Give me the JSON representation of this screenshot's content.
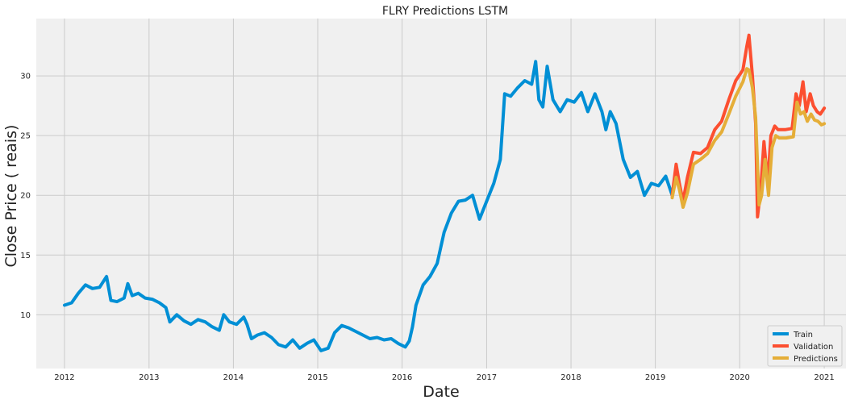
{
  "chart_data": {
    "type": "line",
    "title": "FLRY Predictions LSTM",
    "xlabel": "Date",
    "ylabel": "Close Price ( reais)",
    "x_ticks": [
      "2012",
      "2013",
      "2014",
      "2015",
      "2016",
      "2017",
      "2018",
      "2019",
      "2020",
      "2021"
    ],
    "y_ticks": [
      10,
      15,
      20,
      25,
      30
    ],
    "xlim": [
      "2011-09-01",
      "2021-04-05"
    ],
    "ylim": [
      5.5,
      34.8
    ],
    "grid": true,
    "legend_position": "lower-right",
    "colors": {
      "background": "#f0f0f0",
      "grid": "#cbcbcb",
      "train": "#008fd5",
      "validation": "#fc4f30",
      "predictions": "#e5ae38"
    },
    "series": [
      {
        "name": "Train",
        "x": [
          "2012-01-01",
          "2012-02-01",
          "2012-03-01",
          "2012-04-01",
          "2012-05-01",
          "2012-06-01",
          "2012-07-01",
          "2012-07-20",
          "2012-08-15",
          "2012-09-15",
          "2012-10-01",
          "2012-10-20",
          "2012-11-15",
          "2012-12-15",
          "2013-01-15",
          "2013-02-15",
          "2013-03-15",
          "2013-04-01",
          "2013-05-01",
          "2013-06-01",
          "2013-07-01",
          "2013-08-01",
          "2013-09-01",
          "2013-10-01",
          "2013-11-01",
          "2013-11-20",
          "2013-12-15",
          "2014-01-15",
          "2014-02-15",
          "2014-03-01",
          "2014-03-20",
          "2014-04-15",
          "2014-05-15",
          "2014-06-15",
          "2014-07-15",
          "2014-08-15",
          "2014-09-15",
          "2014-10-15",
          "2014-11-15",
          "2014-12-15",
          "2015-01-15",
          "2015-02-15",
          "2015-03-15",
          "2015-04-15",
          "2015-05-15",
          "2015-06-15",
          "2015-07-15",
          "2015-08-15",
          "2015-09-15",
          "2015-10-15",
          "2015-11-15",
          "2015-12-15",
          "2016-01-15",
          "2016-02-01",
          "2016-02-15",
          "2016-03-01",
          "2016-04-01",
          "2016-05-01",
          "2016-06-01",
          "2016-07-01",
          "2016-08-01",
          "2016-09-01",
          "2016-10-01",
          "2016-11-01",
          "2016-12-01",
          "2017-01-01",
          "2017-02-01",
          "2017-03-01",
          "2017-03-20",
          "2017-04-15",
          "2017-05-15",
          "2017-06-15",
          "2017-07-15",
          "2017-08-01",
          "2017-08-15",
          "2017-09-01",
          "2017-09-20",
          "2017-10-15",
          "2017-11-15",
          "2017-12-15",
          "2018-01-15",
          "2018-02-15",
          "2018-03-15",
          "2018-04-15",
          "2018-05-15",
          "2018-06-01",
          "2018-06-20",
          "2018-07-15",
          "2018-08-15",
          "2018-09-15",
          "2018-10-15",
          "2018-11-15",
          "2018-12-15",
          "2019-01-15",
          "2019-02-15",
          "2019-03-15"
        ],
        "values": [
          10.8,
          11.0,
          11.8,
          12.5,
          12.2,
          12.3,
          13.2,
          11.2,
          11.1,
          11.4,
          12.6,
          11.6,
          11.8,
          11.4,
          11.3,
          11.0,
          10.6,
          9.4,
          10.0,
          9.5,
          9.2,
          9.6,
          9.4,
          9.0,
          8.7,
          10.0,
          9.4,
          9.2,
          9.8,
          9.2,
          8.0,
          8.3,
          8.5,
          8.1,
          7.5,
          7.3,
          7.9,
          7.2,
          7.6,
          7.9,
          7.0,
          7.2,
          8.5,
          9.1,
          8.9,
          8.6,
          8.3,
          8.0,
          8.1,
          7.9,
          8.0,
          7.6,
          7.3,
          7.8,
          9.0,
          10.8,
          12.5,
          13.2,
          14.3,
          16.9,
          18.5,
          19.5,
          19.6,
          20.0,
          18.0,
          19.5,
          21.0,
          23.0,
          28.5,
          28.3,
          29.0,
          29.6,
          29.3,
          31.2,
          28.0,
          27.4,
          30.8,
          28.0,
          27.0,
          28.0,
          27.8,
          28.6,
          27.0,
          28.5,
          27.0,
          25.5,
          27.0,
          26.0,
          23.0,
          21.5,
          22.0,
          20.0,
          21.0,
          20.8,
          21.6,
          20.0
        ]
      },
      {
        "name": "Validation",
        "x": [
          "2019-03-15",
          "2019-04-01",
          "2019-04-15",
          "2019-05-01",
          "2019-05-20",
          "2019-06-15",
          "2019-07-15",
          "2019-08-15",
          "2019-09-15",
          "2019-10-15",
          "2019-11-15",
          "2019-12-15",
          "2020-01-15",
          "2020-02-01",
          "2020-02-10",
          "2020-02-25",
          "2020-03-10",
          "2020-03-18",
          "2020-04-01",
          "2020-04-15",
          "2020-05-01",
          "2020-05-15",
          "2020-06-01",
          "2020-06-15",
          "2020-07-15",
          "2020-08-15",
          "2020-09-01",
          "2020-09-15",
          "2020-10-01",
          "2020-10-15",
          "2020-11-01",
          "2020-11-15",
          "2020-12-01",
          "2020-12-15",
          "2021-01-01"
        ],
        "values": [
          20.0,
          22.6,
          21.0,
          19.5,
          21.5,
          23.6,
          23.5,
          24.0,
          25.5,
          26.2,
          28.0,
          29.6,
          30.5,
          32.5,
          33.4,
          30.0,
          26.0,
          18.2,
          20.5,
          24.5,
          21.0,
          25.0,
          25.8,
          25.5,
          25.5,
          25.6,
          28.5,
          27.5,
          29.5,
          27.0,
          28.5,
          27.5,
          27.0,
          26.8,
          27.3
        ]
      },
      {
        "name": "Predictions",
        "x": [
          "2019-03-15",
          "2019-04-01",
          "2019-04-15",
          "2019-05-01",
          "2019-05-20",
          "2019-06-15",
          "2019-07-15",
          "2019-08-15",
          "2019-09-15",
          "2019-10-15",
          "2019-11-15",
          "2019-12-15",
          "2020-01-15",
          "2020-02-01",
          "2020-02-10",
          "2020-02-25",
          "2020-03-10",
          "2020-03-25",
          "2020-04-05",
          "2020-04-20",
          "2020-05-05",
          "2020-05-20",
          "2020-06-05",
          "2020-06-20",
          "2020-07-20",
          "2020-08-20",
          "2020-09-05",
          "2020-09-20",
          "2020-10-05",
          "2020-10-20",
          "2020-11-05",
          "2020-11-20",
          "2020-12-05",
          "2020-12-20",
          "2021-01-01"
        ],
        "values": [
          19.8,
          21.5,
          20.5,
          19.0,
          20.2,
          22.6,
          23.0,
          23.5,
          24.6,
          25.3,
          26.8,
          28.3,
          29.5,
          30.6,
          30.5,
          29.0,
          26.5,
          19.2,
          20.0,
          23.0,
          20.0,
          24.0,
          25.0,
          24.8,
          24.8,
          24.9,
          27.8,
          26.8,
          27.0,
          26.2,
          26.8,
          26.3,
          26.2,
          25.9,
          26.0
        ]
      }
    ]
  }
}
